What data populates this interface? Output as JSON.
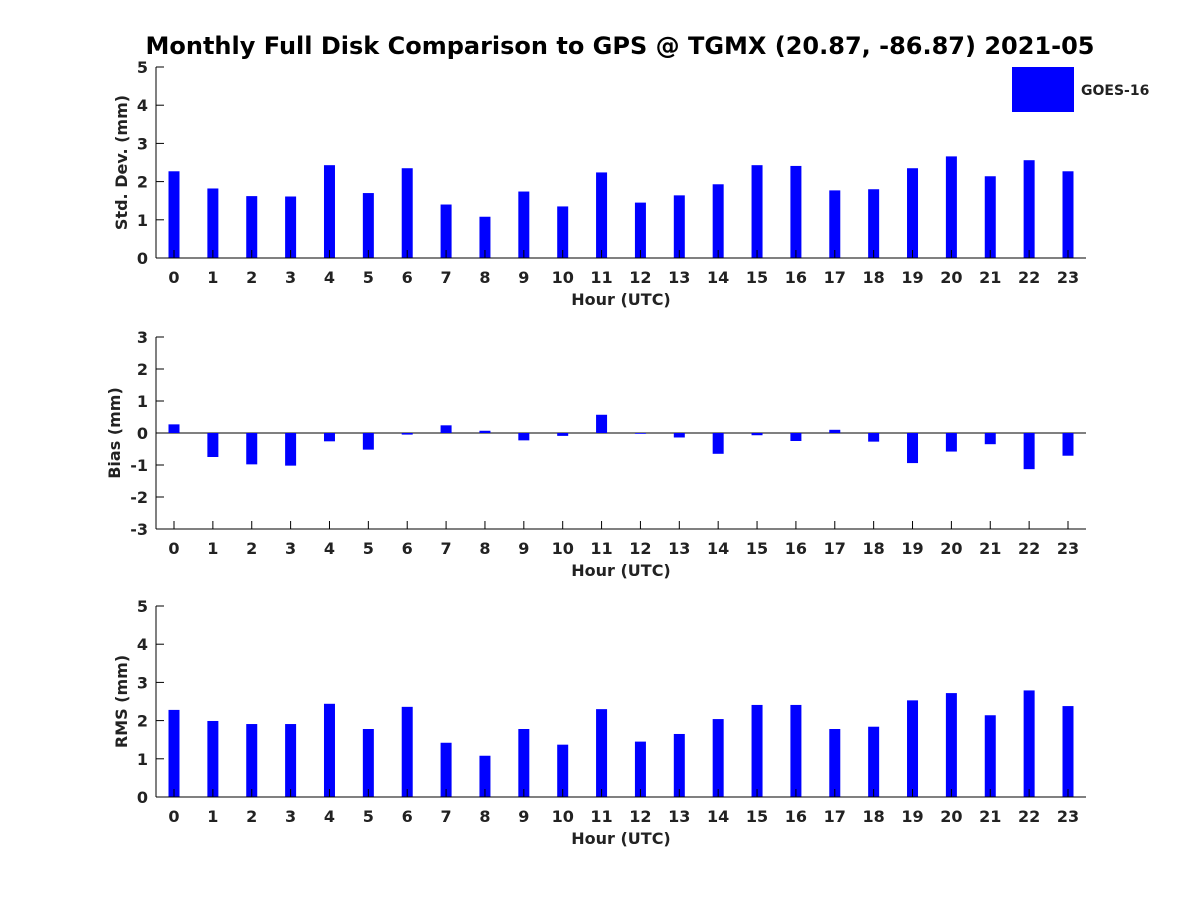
{
  "title": "Monthly Full Disk Comparison to GPS @ TGMX (20.87, -86.87) 2021-05",
  "legend": {
    "label": "GOES-16",
    "color": "#0000ff",
    "placement": "top-right"
  },
  "colors": {
    "bar": "#0000ff",
    "axis": "#000000",
    "text": "#222222"
  },
  "chart_data": [
    {
      "type": "bar",
      "title": "",
      "xlabel": "Hour (UTC)",
      "ylabel": "Std. Dev. (mm)",
      "ylim": [
        0,
        5
      ],
      "yticks": [
        0,
        1,
        2,
        3,
        4,
        5
      ],
      "categories": [
        "0",
        "1",
        "2",
        "3",
        "4",
        "5",
        "6",
        "7",
        "8",
        "9",
        "10",
        "11",
        "12",
        "13",
        "14",
        "15",
        "16",
        "17",
        "18",
        "19",
        "20",
        "21",
        "22",
        "23"
      ],
      "series": [
        {
          "name": "GOES-16",
          "values": [
            2.27,
            1.82,
            1.62,
            1.61,
            2.43,
            1.7,
            2.35,
            1.4,
            1.08,
            1.74,
            1.35,
            2.24,
            1.45,
            1.64,
            1.93,
            2.43,
            2.41,
            1.77,
            1.8,
            2.35,
            2.66,
            2.14,
            2.56,
            2.27
          ]
        }
      ]
    },
    {
      "type": "bar",
      "title": "",
      "xlabel": "Hour (UTC)",
      "ylabel": "Bias (mm)",
      "ylim": [
        -3,
        3
      ],
      "yticks": [
        -3,
        -2,
        -1,
        0,
        1,
        2,
        3
      ],
      "categories": [
        "0",
        "1",
        "2",
        "3",
        "4",
        "5",
        "6",
        "7",
        "8",
        "9",
        "10",
        "11",
        "12",
        "13",
        "14",
        "15",
        "16",
        "17",
        "18",
        "19",
        "20",
        "21",
        "22",
        "23"
      ],
      "series": [
        {
          "name": "GOES-16",
          "values": [
            0.27,
            -0.75,
            -0.98,
            -1.02,
            -0.26,
            -0.52,
            -0.05,
            0.24,
            0.07,
            -0.23,
            -0.09,
            0.57,
            -0.01,
            -0.14,
            -0.65,
            -0.07,
            -0.25,
            0.1,
            -0.27,
            -0.94,
            -0.58,
            -0.35,
            -1.13,
            -0.71
          ]
        }
      ]
    },
    {
      "type": "bar",
      "title": "",
      "xlabel": "Hour (UTC)",
      "ylabel": "RMS (mm)",
      "ylim": [
        0,
        5
      ],
      "yticks": [
        0,
        1,
        2,
        3,
        4,
        5
      ],
      "categories": [
        "0",
        "1",
        "2",
        "3",
        "4",
        "5",
        "6",
        "7",
        "8",
        "9",
        "10",
        "11",
        "12",
        "13",
        "14",
        "15",
        "16",
        "17",
        "18",
        "19",
        "20",
        "21",
        "22",
        "23"
      ],
      "series": [
        {
          "name": "GOES-16",
          "values": [
            2.28,
            1.99,
            1.91,
            1.91,
            2.44,
            1.78,
            2.36,
            1.42,
            1.08,
            1.78,
            1.37,
            2.3,
            1.45,
            1.65,
            2.04,
            2.41,
            2.41,
            1.78,
            1.84,
            2.53,
            2.72,
            2.14,
            2.79,
            2.38
          ]
        }
      ]
    }
  ]
}
